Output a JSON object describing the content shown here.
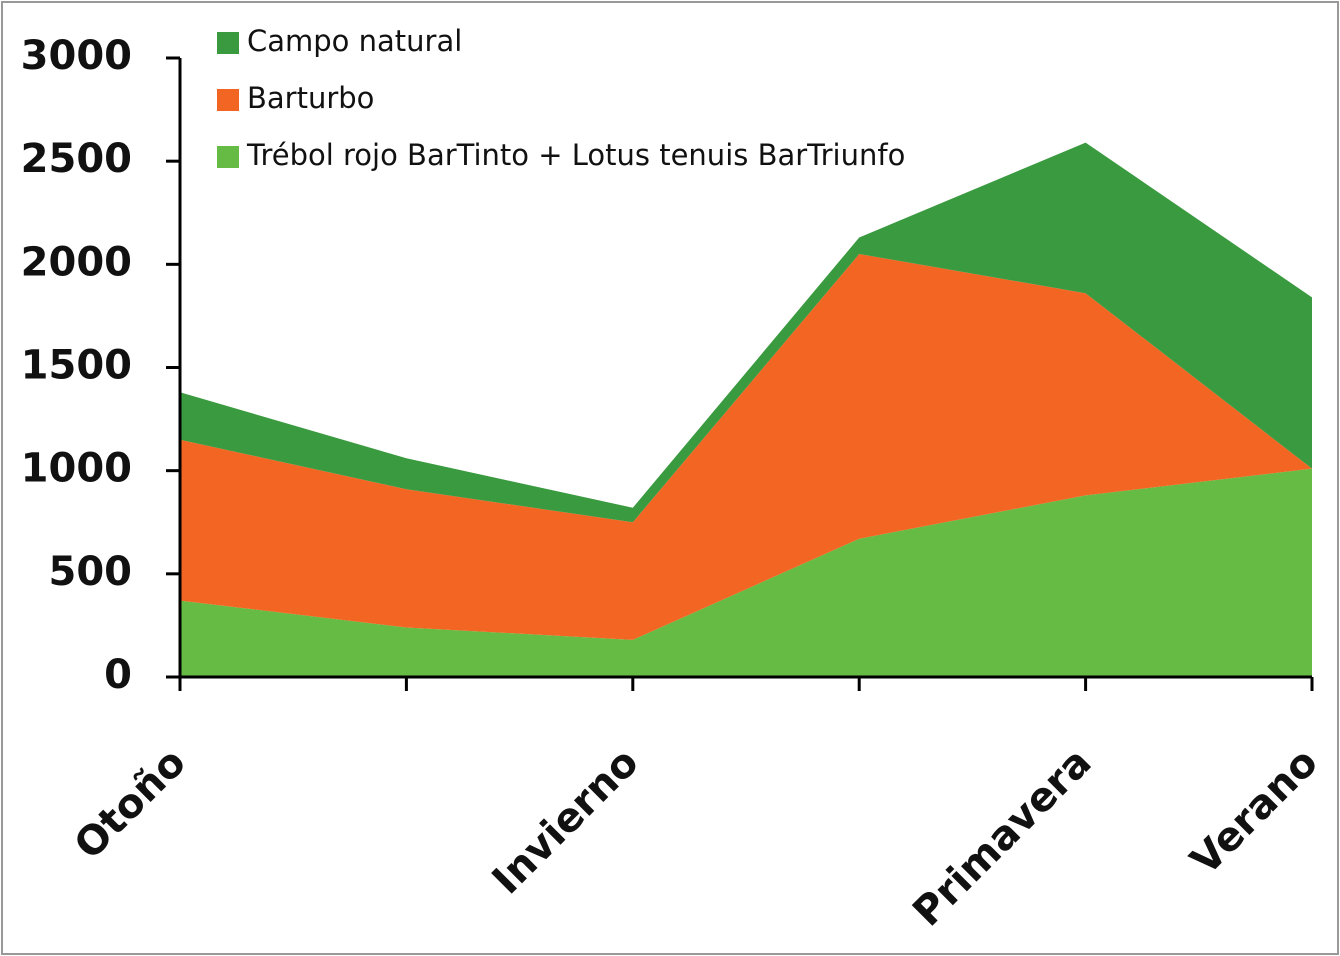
{
  "chart_data": {
    "type": "stacked_area",
    "categories": [
      "Otoño",
      null,
      "Invierno",
      null,
      "Primavera",
      "Verano"
    ],
    "series": [
      {
        "name": "Trébol rojo BarTinto + Lotus tenuis BarTriunfo",
        "color": "#66bb44",
        "values": [
          370,
          240,
          180,
          670,
          880,
          1010
        ]
      },
      {
        "name": "Barturbo",
        "color": "#f26522",
        "values": [
          780,
          670,
          570,
          1380,
          980,
          0
        ]
      },
      {
        "name": "Campo natural",
        "color": "#3a9a3f",
        "values": [
          230,
          150,
          70,
          80,
          730,
          830
        ]
      }
    ],
    "ylim": [
      0,
      3000
    ],
    "yticks": [
      0,
      500,
      1000,
      1500,
      2000,
      2500,
      3000
    ],
    "legend": "top-left"
  }
}
